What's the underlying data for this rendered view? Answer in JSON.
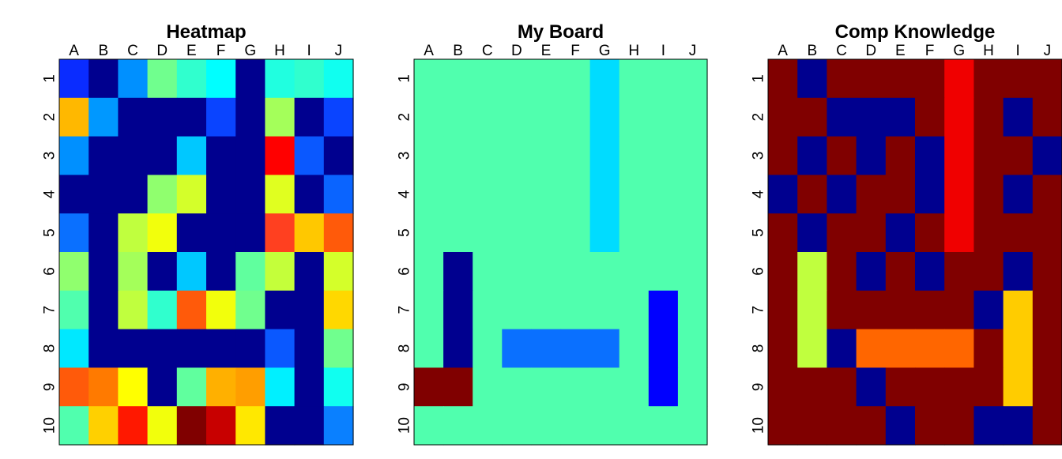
{
  "columns": [
    "A",
    "B",
    "C",
    "D",
    "E",
    "F",
    "G",
    "H",
    "I",
    "J"
  ],
  "rows": [
    "1",
    "2",
    "3",
    "4",
    "5",
    "6",
    "7",
    "8",
    "9",
    "10"
  ],
  "boards": [
    {
      "title": "Heatmap",
      "cells": [
        [
          "#0a2cff",
          "#00008f",
          "#0090ff",
          "#70ff8e",
          "#30ffce",
          "#00ffff",
          "#00008f",
          "#20ffe0",
          "#30ffce",
          "#10fff0"
        ],
        [
          "#ffb800",
          "#0098ff",
          "#00008f",
          "#00008f",
          "#00008f",
          "#0a44ff",
          "#00008f",
          "#a4ff5a",
          "#00008f",
          "#0a44ff"
        ],
        [
          "#0090ff",
          "#00008f",
          "#00008f",
          "#00008f",
          "#00c8ff",
          "#00008f",
          "#00008f",
          "#ff0000",
          "#0a58ff",
          "#00008f"
        ],
        [
          "#00008f",
          "#00008f",
          "#00008f",
          "#90ff6e",
          "#d4ff2a",
          "#00008f",
          "#00008f",
          "#e0ff20",
          "#00008f",
          "#0a64ff"
        ],
        [
          "#0a70ff",
          "#00008f",
          "#c0ff3e",
          "#f2ff0c",
          "#00008f",
          "#00008f",
          "#00008f",
          "#ff4020",
          "#ffc800",
          "#ff5a0a"
        ],
        [
          "#90ff6e",
          "#00008f",
          "#a4ff5a",
          "#00008f",
          "#00c8ff",
          "#00008f",
          "#60ff9e",
          "#c4ff3a",
          "#00008f",
          "#d4ff2a"
        ],
        [
          "#50ffae",
          "#00008f",
          "#c0ff3e",
          "#30ffce",
          "#ff5a0a",
          "#f2ff0c",
          "#70ff8e",
          "#00008f",
          "#00008f",
          "#ffd800"
        ],
        [
          "#00e8ff",
          "#00008f",
          "#00008f",
          "#00008f",
          "#00008f",
          "#00008f",
          "#00008f",
          "#0a58ff",
          "#00008f",
          "#70ff8e"
        ],
        [
          "#ff5a0a",
          "#ff7a00",
          "#ffff00",
          "#00008f",
          "#60ff9e",
          "#ffb000",
          "#ff9e00",
          "#00f0ff",
          "#00008f",
          "#10fff0"
        ],
        [
          "#50ffae",
          "#ffd000",
          "#ff1800",
          "#f2ff0c",
          "#800000",
          "#c80000",
          "#ffe800",
          "#00008f",
          "#00008f",
          "#0a80ff"
        ]
      ]
    },
    {
      "title": "My Board",
      "cells": [
        [
          "#50ffae",
          "#50ffae",
          "#50ffae",
          "#50ffae",
          "#50ffae",
          "#50ffae",
          "#00dcff",
          "#50ffae",
          "#50ffae",
          "#50ffae"
        ],
        [
          "#50ffae",
          "#50ffae",
          "#50ffae",
          "#50ffae",
          "#50ffae",
          "#50ffae",
          "#00dcff",
          "#50ffae",
          "#50ffae",
          "#50ffae"
        ],
        [
          "#50ffae",
          "#50ffae",
          "#50ffae",
          "#50ffae",
          "#50ffae",
          "#50ffae",
          "#00dcff",
          "#50ffae",
          "#50ffae",
          "#50ffae"
        ],
        [
          "#50ffae",
          "#50ffae",
          "#50ffae",
          "#50ffae",
          "#50ffae",
          "#50ffae",
          "#00dcff",
          "#50ffae",
          "#50ffae",
          "#50ffae"
        ],
        [
          "#50ffae",
          "#50ffae",
          "#50ffae",
          "#50ffae",
          "#50ffae",
          "#50ffae",
          "#00dcff",
          "#50ffae",
          "#50ffae",
          "#50ffae"
        ],
        [
          "#50ffae",
          "#00008f",
          "#50ffae",
          "#50ffae",
          "#50ffae",
          "#50ffae",
          "#50ffae",
          "#50ffae",
          "#50ffae",
          "#50ffae"
        ],
        [
          "#50ffae",
          "#00008f",
          "#50ffae",
          "#50ffae",
          "#50ffae",
          "#50ffae",
          "#50ffae",
          "#50ffae",
          "#0000ff",
          "#50ffae"
        ],
        [
          "#50ffae",
          "#00008f",
          "#50ffae",
          "#0a70ff",
          "#0a70ff",
          "#0a70ff",
          "#0a70ff",
          "#50ffae",
          "#0000ff",
          "#50ffae"
        ],
        [
          "#800000",
          "#800000",
          "#50ffae",
          "#50ffae",
          "#50ffae",
          "#50ffae",
          "#50ffae",
          "#50ffae",
          "#0000ff",
          "#50ffae"
        ],
        [
          "#50ffae",
          "#50ffae",
          "#50ffae",
          "#50ffae",
          "#50ffae",
          "#50ffae",
          "#50ffae",
          "#50ffae",
          "#50ffae",
          "#50ffae"
        ]
      ]
    },
    {
      "title": "Comp Knowledge",
      "cells": [
        [
          "#800000",
          "#00008f",
          "#800000",
          "#800000",
          "#800000",
          "#800000",
          "#f00000",
          "#800000",
          "#800000",
          "#800000"
        ],
        [
          "#800000",
          "#800000",
          "#00008f",
          "#00008f",
          "#00008f",
          "#800000",
          "#f00000",
          "#800000",
          "#00008f",
          "#800000"
        ],
        [
          "#800000",
          "#00008f",
          "#800000",
          "#00008f",
          "#800000",
          "#00008f",
          "#f00000",
          "#800000",
          "#800000",
          "#00008f"
        ],
        [
          "#00008f",
          "#800000",
          "#00008f",
          "#800000",
          "#800000",
          "#00008f",
          "#f00000",
          "#800000",
          "#00008f",
          "#800000"
        ],
        [
          "#800000",
          "#00008f",
          "#800000",
          "#800000",
          "#00008f",
          "#800000",
          "#f00000",
          "#800000",
          "#800000",
          "#800000"
        ],
        [
          "#800000",
          "#c0ff3e",
          "#800000",
          "#00008f",
          "#800000",
          "#00008f",
          "#800000",
          "#800000",
          "#00008f",
          "#800000"
        ],
        [
          "#800000",
          "#c0ff3e",
          "#800000",
          "#800000",
          "#800000",
          "#800000",
          "#800000",
          "#00008f",
          "#ffcc00",
          "#800000"
        ],
        [
          "#800000",
          "#c0ff3e",
          "#00008f",
          "#ff6600",
          "#ff6600",
          "#ff6600",
          "#ff6600",
          "#800000",
          "#ffcc00",
          "#800000"
        ],
        [
          "#800000",
          "#800000",
          "#800000",
          "#00008f",
          "#800000",
          "#800000",
          "#800000",
          "#800000",
          "#ffcc00",
          "#800000"
        ],
        [
          "#800000",
          "#800000",
          "#800000",
          "#800000",
          "#00008f",
          "#800000",
          "#800000",
          "#00008f",
          "#00008f",
          "#800000"
        ]
      ]
    }
  ]
}
